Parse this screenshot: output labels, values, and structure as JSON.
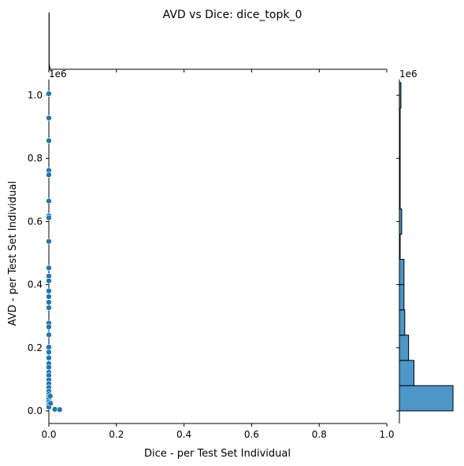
{
  "figure": {
    "title": "AVD vs Dice: dice_topk_0"
  },
  "chart_data": {
    "type": "scatter",
    "title": "AVD vs Dice: dice_topk_0",
    "xlabel": "Dice - per Test Set Individual",
    "ylabel": "AVD - per Test Set Individual",
    "y_offset_text": "1e6",
    "y_offset_text_marginal": "1e6",
    "xlim": [
      0,
      1.0
    ],
    "ylim": [
      -40000,
      1050000
    ],
    "x_ticks": [
      0.0,
      0.2,
      0.4,
      0.6,
      0.8,
      1.0
    ],
    "x_tick_labels": [
      "0.0",
      "0.2",
      "0.4",
      "0.6",
      "0.8",
      "1.0"
    ],
    "y_ticks": [
      0.0,
      0.2,
      0.4,
      0.6,
      0.8,
      1.0
    ],
    "y_tick_labels": [
      "0.0",
      "0.2",
      "0.4",
      "0.6",
      "0.8",
      "1.0"
    ],
    "y_tick_scale": 1000000,
    "grid": false,
    "point_color": "#1f77b4",
    "points": [
      {
        "x": 0.0,
        "y": 1005000
      },
      {
        "x": 0.0,
        "y": 928000
      },
      {
        "x": 0.0,
        "y": 856000
      },
      {
        "x": 0.0,
        "y": 762000
      },
      {
        "x": 0.0,
        "y": 748000
      },
      {
        "x": 0.0,
        "y": 665000
      },
      {
        "x": 0.0,
        "y": 618000
      },
      {
        "x": 0.0,
        "y": 612000
      },
      {
        "x": 0.0,
        "y": 537000
      },
      {
        "x": 0.0,
        "y": 453000
      },
      {
        "x": 0.0,
        "y": 427000
      },
      {
        "x": 0.0,
        "y": 412000
      },
      {
        "x": 0.0,
        "y": 380000
      },
      {
        "x": 0.0,
        "y": 362000
      },
      {
        "x": 0.0,
        "y": 344000
      },
      {
        "x": 0.0,
        "y": 327000
      },
      {
        "x": 0.0,
        "y": 278000
      },
      {
        "x": 0.0,
        "y": 266000
      },
      {
        "x": 0.0,
        "y": 241000
      },
      {
        "x": 0.0,
        "y": 202000
      },
      {
        "x": 0.0,
        "y": 186000
      },
      {
        "x": 0.0,
        "y": 168000
      },
      {
        "x": 0.0,
        "y": 150000
      },
      {
        "x": 0.0,
        "y": 138000
      },
      {
        "x": 0.0,
        "y": 122000
      },
      {
        "x": 0.0,
        "y": 112000
      },
      {
        "x": 0.0,
        "y": 98000
      },
      {
        "x": 0.0,
        "y": 86000
      },
      {
        "x": 0.0,
        "y": 74000
      },
      {
        "x": 0.0,
        "y": 62000
      },
      {
        "x": 0.0,
        "y": 52000
      },
      {
        "x": 0.0,
        "y": 44000
      },
      {
        "x": 0.0,
        "y": 36000
      },
      {
        "x": 0.0,
        "y": 28000
      },
      {
        "x": 0.0,
        "y": 20000
      },
      {
        "x": 0.0,
        "y": 12000
      },
      {
        "x": 0.005,
        "y": 24000
      },
      {
        "x": 0.004,
        "y": 47000
      },
      {
        "x": 0.018,
        "y": 5000
      },
      {
        "x": 0.032,
        "y": 4000
      }
    ],
    "marginal_y_histogram": {
      "bins": [
        {
          "y0": 0,
          "y1": 80000,
          "count": 70
        },
        {
          "y0": 80000,
          "y1": 160000,
          "count": 19
        },
        {
          "y0": 160000,
          "y1": 240000,
          "count": 12
        },
        {
          "y0": 240000,
          "y1": 320000,
          "count": 7
        },
        {
          "y0": 320000,
          "y1": 400000,
          "count": 6
        },
        {
          "y0": 400000,
          "y1": 480000,
          "count": 6
        },
        {
          "y0": 480000,
          "y1": 560000,
          "count": 1
        },
        {
          "y0": 560000,
          "y1": 640000,
          "count": 3
        },
        {
          "y0": 640000,
          "y1": 720000,
          "count": 1
        },
        {
          "y0": 720000,
          "y1": 800000,
          "count": 1
        },
        {
          "y0": 800000,
          "y1": 880000,
          "count": 1
        },
        {
          "y0": 880000,
          "y1": 960000,
          "count": 1
        },
        {
          "y0": 960000,
          "y1": 1040000,
          "count": 2
        }
      ],
      "count_max": 72,
      "fill_color": "#4c96c8",
      "edge_color": "#000000"
    },
    "marginal_x_histogram": {
      "bins": [
        {
          "x0": 0.0,
          "x1": 0.0008,
          "count": 100
        },
        {
          "x0": 0.0008,
          "x1": 0.0016,
          "count": 8
        },
        {
          "x0": 0.0016,
          "x1": 0.0024,
          "count": 5
        },
        {
          "x0": 0.0024,
          "x1": 0.0032,
          "count": 2
        }
      ],
      "count_max": 100,
      "fill_color": "#4c96c8",
      "edge_color": "#000000"
    }
  }
}
